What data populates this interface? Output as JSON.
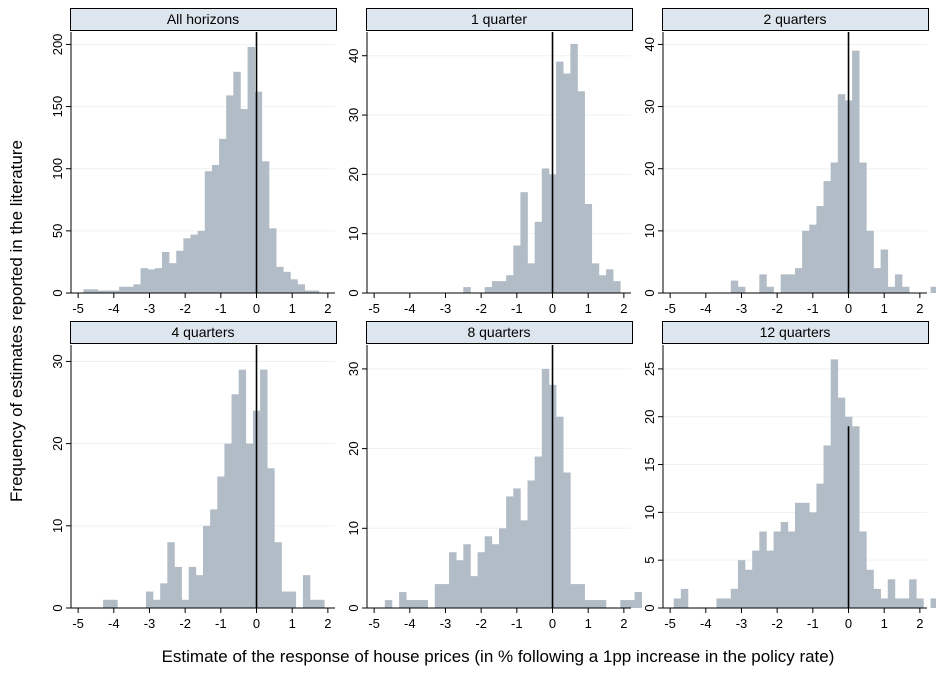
{
  "figure": {
    "ylabel": "Frequency of estimates reported in the literature",
    "xlabel": "Estimate of the response of house prices (in % following a 1pp increase in the policy rate)",
    "bar_color": "#b2bcc6",
    "header_fill": "#dde6ee",
    "zero_line_color": "#000000"
  },
  "chart_data": [
    {
      "type": "bar",
      "title": "All horizons",
      "bin_start": -4.85,
      "bin_width": 0.2,
      "values": [
        3,
        3,
        2,
        2,
        2,
        5,
        5,
        7,
        20,
        19,
        20,
        33,
        24,
        34,
        44,
        47,
        50,
        98,
        103,
        124,
        159,
        178,
        148,
        198,
        162,
        106,
        52,
        21,
        17,
        11,
        7,
        2,
        2
      ],
      "xlim": [
        -5.2,
        2.2
      ],
      "xticks": [
        -5,
        -4,
        -3,
        -2,
        -1,
        0,
        1,
        2
      ],
      "ylim": [
        0,
        210
      ],
      "yticks": [
        0,
        50,
        100,
        150,
        200
      ],
      "zero_line_top": 210
    },
    {
      "type": "bar",
      "title": "1 quarter",
      "bin_start": -2.5,
      "bin_width": 0.2,
      "values": [
        1,
        0,
        0,
        1,
        2,
        2,
        3,
        8,
        17,
        5,
        12,
        21,
        20,
        39,
        37,
        42,
        34,
        15,
        5,
        3,
        4,
        2
      ],
      "xlim": [
        -5.2,
        2.2
      ],
      "xticks": [
        -5,
        -4,
        -3,
        -2,
        -1,
        0,
        1,
        2
      ],
      "ylim": [
        0,
        44
      ],
      "yticks": [
        0,
        10,
        20,
        30,
        40
      ],
      "zero_line_top": 44
    },
    {
      "type": "bar",
      "title": "2 quarters",
      "bin_start": -3.3,
      "bin_width": 0.2,
      "values": [
        2,
        1,
        0,
        0,
        3,
        1,
        0,
        3,
        3,
        4,
        10,
        11,
        14,
        18,
        21,
        32,
        31,
        39,
        21,
        10,
        4,
        7,
        1,
        3,
        1,
        0,
        0,
        0,
        1
      ],
      "xlim": [
        -5.2,
        2.2
      ],
      "xticks": [
        -5,
        -4,
        -3,
        -2,
        -1,
        0,
        1,
        2
      ],
      "ylim": [
        0,
        42
      ],
      "yticks": [
        0,
        10,
        20,
        30,
        40
      ],
      "zero_line_top": 42
    },
    {
      "type": "bar",
      "title": "4 quarters",
      "bin_start": -4.3,
      "bin_width": 0.2,
      "values": [
        1,
        1,
        0,
        0,
        0,
        0,
        2,
        1,
        3,
        8,
        5,
        1,
        5,
        4,
        10,
        12,
        16,
        20,
        26,
        29,
        20,
        24,
        29,
        17,
        8,
        2,
        2,
        0,
        4,
        1,
        1
      ],
      "xlim": [
        -5.2,
        2.2
      ],
      "xticks": [
        -5,
        -4,
        -3,
        -2,
        -1,
        0,
        1,
        2
      ],
      "ylim": [
        0,
        32
      ],
      "yticks": [
        0,
        10,
        20,
        30
      ],
      "zero_line_top": 32
    },
    {
      "type": "bar",
      "title": "8 quarters",
      "bin_start": -4.9,
      "bin_width": 0.2,
      "values": [
        0,
        1,
        0,
        2,
        1,
        1,
        1,
        0,
        3,
        3,
        7,
        6,
        8,
        4,
        7,
        9,
        8,
        10,
        14,
        15,
        11,
        16,
        19,
        30,
        28,
        24,
        17,
        3,
        3,
        1,
        1,
        1,
        0,
        0,
        1,
        1,
        2
      ],
      "xlim": [
        -5.2,
        2.2
      ],
      "xticks": [
        -5,
        -4,
        -3,
        -2,
        -1,
        0,
        1,
        2
      ],
      "ylim": [
        0,
        33
      ],
      "yticks": [
        0,
        10,
        20,
        30
      ],
      "zero_line_top": 33
    },
    {
      "type": "bar",
      "title": "12 quarters",
      "bin_start": -4.9,
      "bin_width": 0.2,
      "values": [
        1,
        2,
        0,
        0,
        0,
        0,
        1,
        1,
        2,
        5,
        4,
        6,
        8,
        6,
        8,
        9,
        8,
        11,
        11,
        10,
        13,
        17,
        26,
        22,
        20,
        19,
        8,
        4,
        2,
        1,
        3,
        1,
        1,
        3,
        1,
        0,
        1
      ],
      "xlim": [
        -5.2,
        2.2
      ],
      "xticks": [
        -5,
        -4,
        -3,
        -2,
        -1,
        0,
        1,
        2
      ],
      "ylim": [
        0,
        27.5
      ],
      "yticks": [
        0,
        5,
        10,
        15,
        20,
        25
      ],
      "zero_line_top": 19
    }
  ]
}
